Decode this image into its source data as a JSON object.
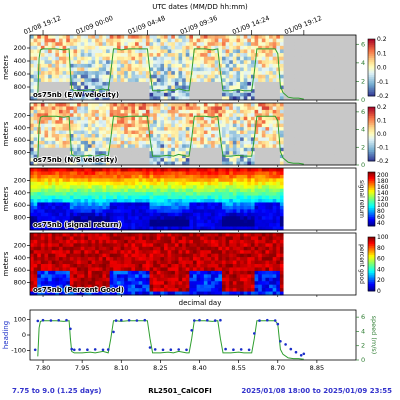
{
  "header": {
    "top_axis_label": "UTC dates (MM/DD hh:mm)"
  },
  "footer": {
    "left": "7.75 to 9.0 (1.25 days)",
    "center": "RL2501_CalCOFI",
    "right": "2025/01/08 18:00 to 2025/01/09 23:55",
    "left_color": "#3333cc",
    "right_color": "#3333cc"
  },
  "colors": {
    "speed_line": "#2e9e2e",
    "heading_dots": "#1a2ec8",
    "nodata": "#c8c8c8"
  },
  "chart_data": [
    {
      "type": "heatmap",
      "annotation": "os75nb (E/W velocity)",
      "ylabel": "meters",
      "yticks": [
        "200",
        "400",
        "600",
        "800"
      ],
      "ylim": [
        1000,
        0
      ],
      "colorbar": {
        "ticks": [
          "0.2",
          "0.1",
          "0.0",
          "-0.1",
          "-0.2"
        ],
        "range": [
          -0.2,
          0.2
        ],
        "colormap": "RdYlBu_r"
      },
      "right_axis": {
        "label": "speed (m/s)",
        "ticks": [
          "6",
          "4",
          "2",
          "0"
        ]
      }
    },
    {
      "type": "heatmap",
      "annotation": "os75nb (N/S velocity)",
      "ylabel": "meters",
      "yticks": [
        "200",
        "400",
        "600",
        "800"
      ],
      "ylim": [
        1000,
        0
      ],
      "colorbar": {
        "ticks": [
          "0.2",
          "0.1",
          "0.0",
          "-0.1",
          "-0.2"
        ],
        "range": [
          -0.2,
          0.2
        ],
        "colormap": "RdYlBu_r"
      },
      "right_axis": {
        "label": "speed (m/s)",
        "ticks": [
          "6",
          "4",
          "2",
          "0"
        ]
      }
    },
    {
      "type": "heatmap",
      "annotation": "os75nb (signal return)",
      "ylabel": "meters",
      "yticks": [
        "200",
        "400",
        "600",
        "800"
      ],
      "ylim": [
        1000,
        0
      ],
      "colorbar": {
        "label": "signal return",
        "ticks": [
          "200",
          "180",
          "160",
          "140",
          "120",
          "100",
          "80",
          "60",
          "40"
        ],
        "range": [
          30,
          210
        ],
        "colormap": "jet"
      }
    },
    {
      "type": "heatmap",
      "annotation": "os75nb (Percent Good)",
      "ylabel": "meters",
      "yticks": [
        "200",
        "400",
        "600",
        "800"
      ],
      "ylim": [
        1000,
        0
      ],
      "colorbar": {
        "label": "percent good",
        "ticks": [
          "100",
          "80",
          "60",
          "40",
          "20",
          "0"
        ],
        "range": [
          0,
          100
        ],
        "colormap": "jet"
      }
    },
    {
      "type": "line",
      "xlabel": "decimal day",
      "ylabel": "heading",
      "xlim": [
        7.75,
        9.0
      ],
      "xticks": [
        "7.80",
        "7.95",
        "8.10",
        "8.25",
        "8.40",
        "8.55",
        "8.70",
        "8.85"
      ],
      "yticks": [
        "100",
        "0",
        "-100"
      ],
      "ylim": [
        -160,
        160
      ],
      "right_axis": {
        "label": "speed (m/s)",
        "ticks": [
          "6",
          "4",
          "2",
          "0"
        ],
        "range": [
          0,
          7
        ]
      },
      "top_time_ticks": [
        "01/08 19:12",
        "01/09 00:00",
        "01/09 04:48",
        "01/09 09:36",
        "01/09 14:24",
        "01/09 19:12"
      ],
      "series": [
        {
          "x": [
            7.78,
            7.785,
            7.79,
            7.8,
            7.82,
            7.85,
            7.88,
            7.9,
            7.905,
            7.91,
            7.92,
            7.95,
            7.98,
            8.0,
            8.03,
            8.05,
            8.06,
            8.07,
            8.08,
            8.1,
            8.13,
            8.15,
            8.18,
            8.2,
            8.21,
            8.22,
            8.25,
            8.28,
            8.3,
            8.32,
            8.35,
            8.36,
            8.37,
            8.38,
            8.4,
            8.42,
            8.45,
            8.47,
            8.48,
            8.49,
            8.5,
            8.52,
            8.55,
            8.57,
            8.6,
            8.61,
            8.62,
            8.65,
            8.67,
            8.69,
            8.7,
            8.71,
            8.72,
            8.74,
            8.76,
            8.78,
            8.8
          ],
          "values": [
            0.5,
            4.5,
            5.4,
            5.5,
            5.5,
            5.5,
            5.4,
            5.5,
            3,
            1.2,
            1.0,
            1.0,
            1.1,
            1.0,
            1.2,
            1.0,
            3,
            5.5,
            5.5,
            5.4,
            5.5,
            5.5,
            5.5,
            5.5,
            3,
            1.0,
            1.0,
            1.1,
            1.0,
            1.2,
            1.0,
            1.0,
            3,
            5.5,
            5.5,
            5.5,
            5.4,
            5.5,
            3,
            1.0,
            1.0,
            1.0,
            1.1,
            1.0,
            1.0,
            3,
            5.5,
            5.5,
            5.5,
            5.5,
            5.0,
            1.5,
            0.8,
            0.3,
            0.2,
            0.2,
            0.1
          ]
        },
        {
          "x": [
            7.77,
            7.78,
            7.8,
            7.83,
            7.86,
            7.89,
            7.905,
            7.91,
            7.92,
            7.94,
            7.97,
            8.0,
            8.03,
            8.05,
            8.07,
            8.08,
            8.1,
            8.13,
            8.16,
            8.19,
            8.21,
            8.23,
            8.26,
            8.29,
            8.32,
            8.35,
            8.37,
            8.38,
            8.4,
            8.43,
            8.46,
            8.48,
            8.5,
            8.53,
            8.56,
            8.59,
            8.61,
            8.63,
            8.66,
            8.69,
            8.7,
            8.71,
            8.73,
            8.75,
            8.77,
            8.79,
            8.8
          ],
          "values": [
            -95,
            90,
            95,
            93,
            94,
            95,
            40,
            -90,
            -95,
            -93,
            -94,
            -92,
            -95,
            -93,
            20,
            92,
            95,
            94,
            93,
            95,
            -80,
            -92,
            -95,
            -94,
            -93,
            -95,
            30,
            93,
            95,
            94,
            92,
            95,
            -90,
            -94,
            -92,
            -95,
            10,
            92,
            95,
            93,
            70,
            -40,
            -60,
            -90,
            -110,
            -130,
            -120
          ]
        }
      ]
    }
  ]
}
